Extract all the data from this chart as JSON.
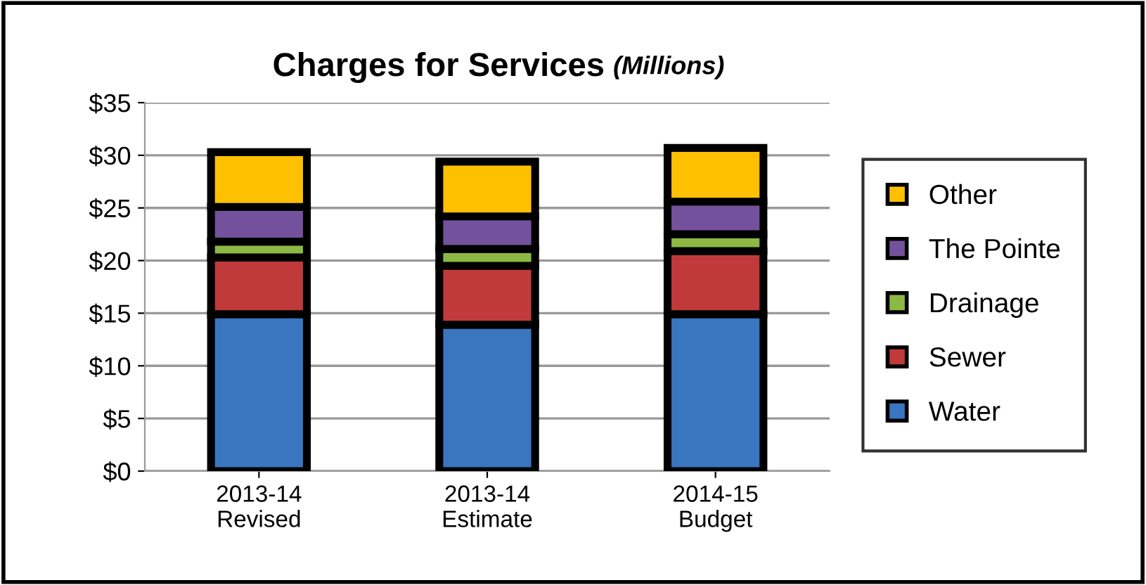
{
  "chart_data": {
    "type": "bar",
    "stacked": true,
    "title": "Charges for Services",
    "subtitle": "(Millions)",
    "categories": [
      "2013-14\nRevised",
      "2013-14\nEstimate",
      "2014-15\nBudget"
    ],
    "series": [
      {
        "name": "Water",
        "color": "#3a75c0",
        "values": [
          14.9,
          13.9,
          14.9
        ]
      },
      {
        "name": "Sewer",
        "color": "#c0393b",
        "values": [
          5.4,
          5.6,
          6.0
        ]
      },
      {
        "name": "Drainage",
        "color": "#8cb843",
        "values": [
          1.5,
          1.6,
          1.6
        ]
      },
      {
        "name": "The Pointe",
        "color": "#74519c",
        "values": [
          3.3,
          3.1,
          3.1
        ]
      },
      {
        "name": "Other",
        "color": "#ffc000",
        "values": [
          5.2,
          5.2,
          5.1
        ]
      }
    ],
    "ylim": [
      0,
      35
    ],
    "yticks": [
      {
        "value": 0,
        "label": "$0"
      },
      {
        "value": 5,
        "label": "$5"
      },
      {
        "value": 10,
        "label": "$10"
      },
      {
        "value": 15,
        "label": "$15"
      },
      {
        "value": 20,
        "label": "$20"
      },
      {
        "value": 25,
        "label": "$25"
      },
      {
        "value": 30,
        "label": "$30"
      },
      {
        "value": 35,
        "label": "$35"
      }
    ],
    "grid": "y",
    "legend": "right"
  }
}
